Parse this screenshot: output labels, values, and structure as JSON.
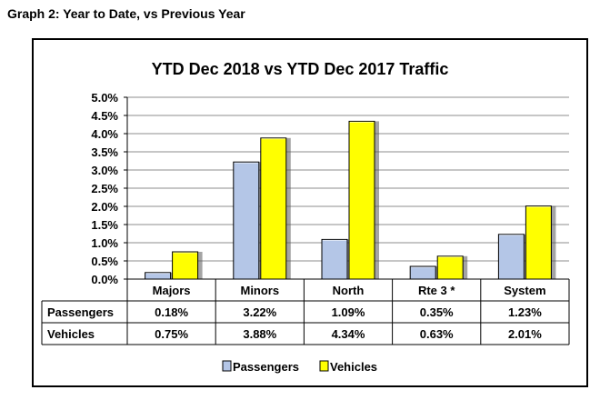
{
  "page_heading": "Graph 2: Year to Date, vs Previous Year",
  "chart_data": {
    "type": "bar",
    "title": "YTD Dec 2018 vs YTD Dec 2017 Traffic",
    "xlabel": "",
    "ylabel": "",
    "categories": [
      "Majors",
      "Minors",
      "North",
      "Rte 3 *",
      "System"
    ],
    "series": [
      {
        "name": "Passengers",
        "values": [
          0.18,
          3.22,
          1.09,
          0.35,
          1.23
        ],
        "labels": [
          "0.18%",
          "3.22%",
          "1.09%",
          "0.35%",
          "1.23%"
        ],
        "color": "#b4c6e7"
      },
      {
        "name": "Vehicles",
        "values": [
          0.75,
          3.88,
          4.34,
          0.63,
          2.01
        ],
        "labels": [
          "0.75%",
          "3.88%",
          "4.34%",
          "0.63%",
          "2.01%"
        ],
        "color": "#ffff00"
      }
    ],
    "ylim": [
      0,
      5.0
    ],
    "yticks": [
      "0.0%",
      "0.5%",
      "1.0%",
      "1.5%",
      "2.0%",
      "2.5%",
      "3.0%",
      "3.5%",
      "4.0%",
      "4.5%",
      "5.0%"
    ],
    "grid": true,
    "legend_position": "bottom",
    "data_table": true
  }
}
